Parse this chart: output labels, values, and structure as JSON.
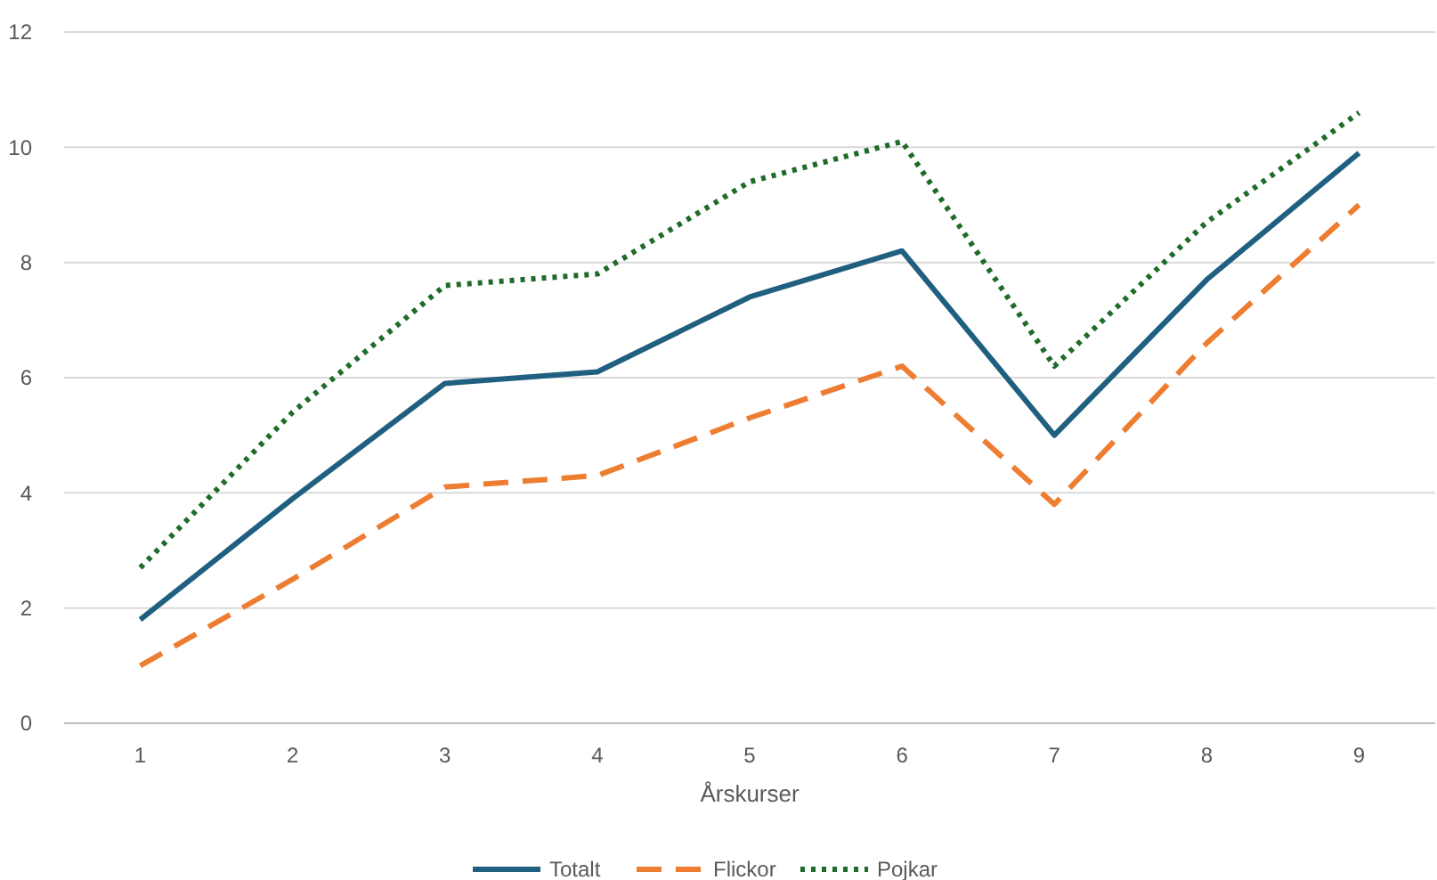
{
  "chart_data": {
    "type": "line",
    "xlabel": "Årskurser",
    "categories": [
      "1",
      "2",
      "3",
      "4",
      "5",
      "6",
      "7",
      "8",
      "9"
    ],
    "series": [
      {
        "name": "Totalt",
        "color": "#1f5f7f",
        "line_style": "solid",
        "values": [
          1.8,
          3.9,
          5.9,
          6.1,
          7.4,
          8.2,
          5.0,
          7.7,
          9.9
        ]
      },
      {
        "name": "Flickor",
        "color": "#ed7d31",
        "line_style": "dashed",
        "values": [
          1.0,
          2.5,
          4.1,
          4.3,
          5.3,
          6.2,
          3.8,
          6.6,
          9.0
        ]
      },
      {
        "name": "Pojkar",
        "color": "#1e6b2a",
        "line_style": "dotted",
        "values": [
          2.7,
          5.4,
          7.6,
          7.8,
          9.4,
          10.1,
          6.2,
          8.7,
          10.6
        ]
      }
    ],
    "ylim": [
      0,
      12
    ],
    "yticks": [
      0,
      2,
      4,
      6,
      8,
      10,
      12
    ],
    "grid": "y",
    "legend": "bottom",
    "marker": "none"
  }
}
